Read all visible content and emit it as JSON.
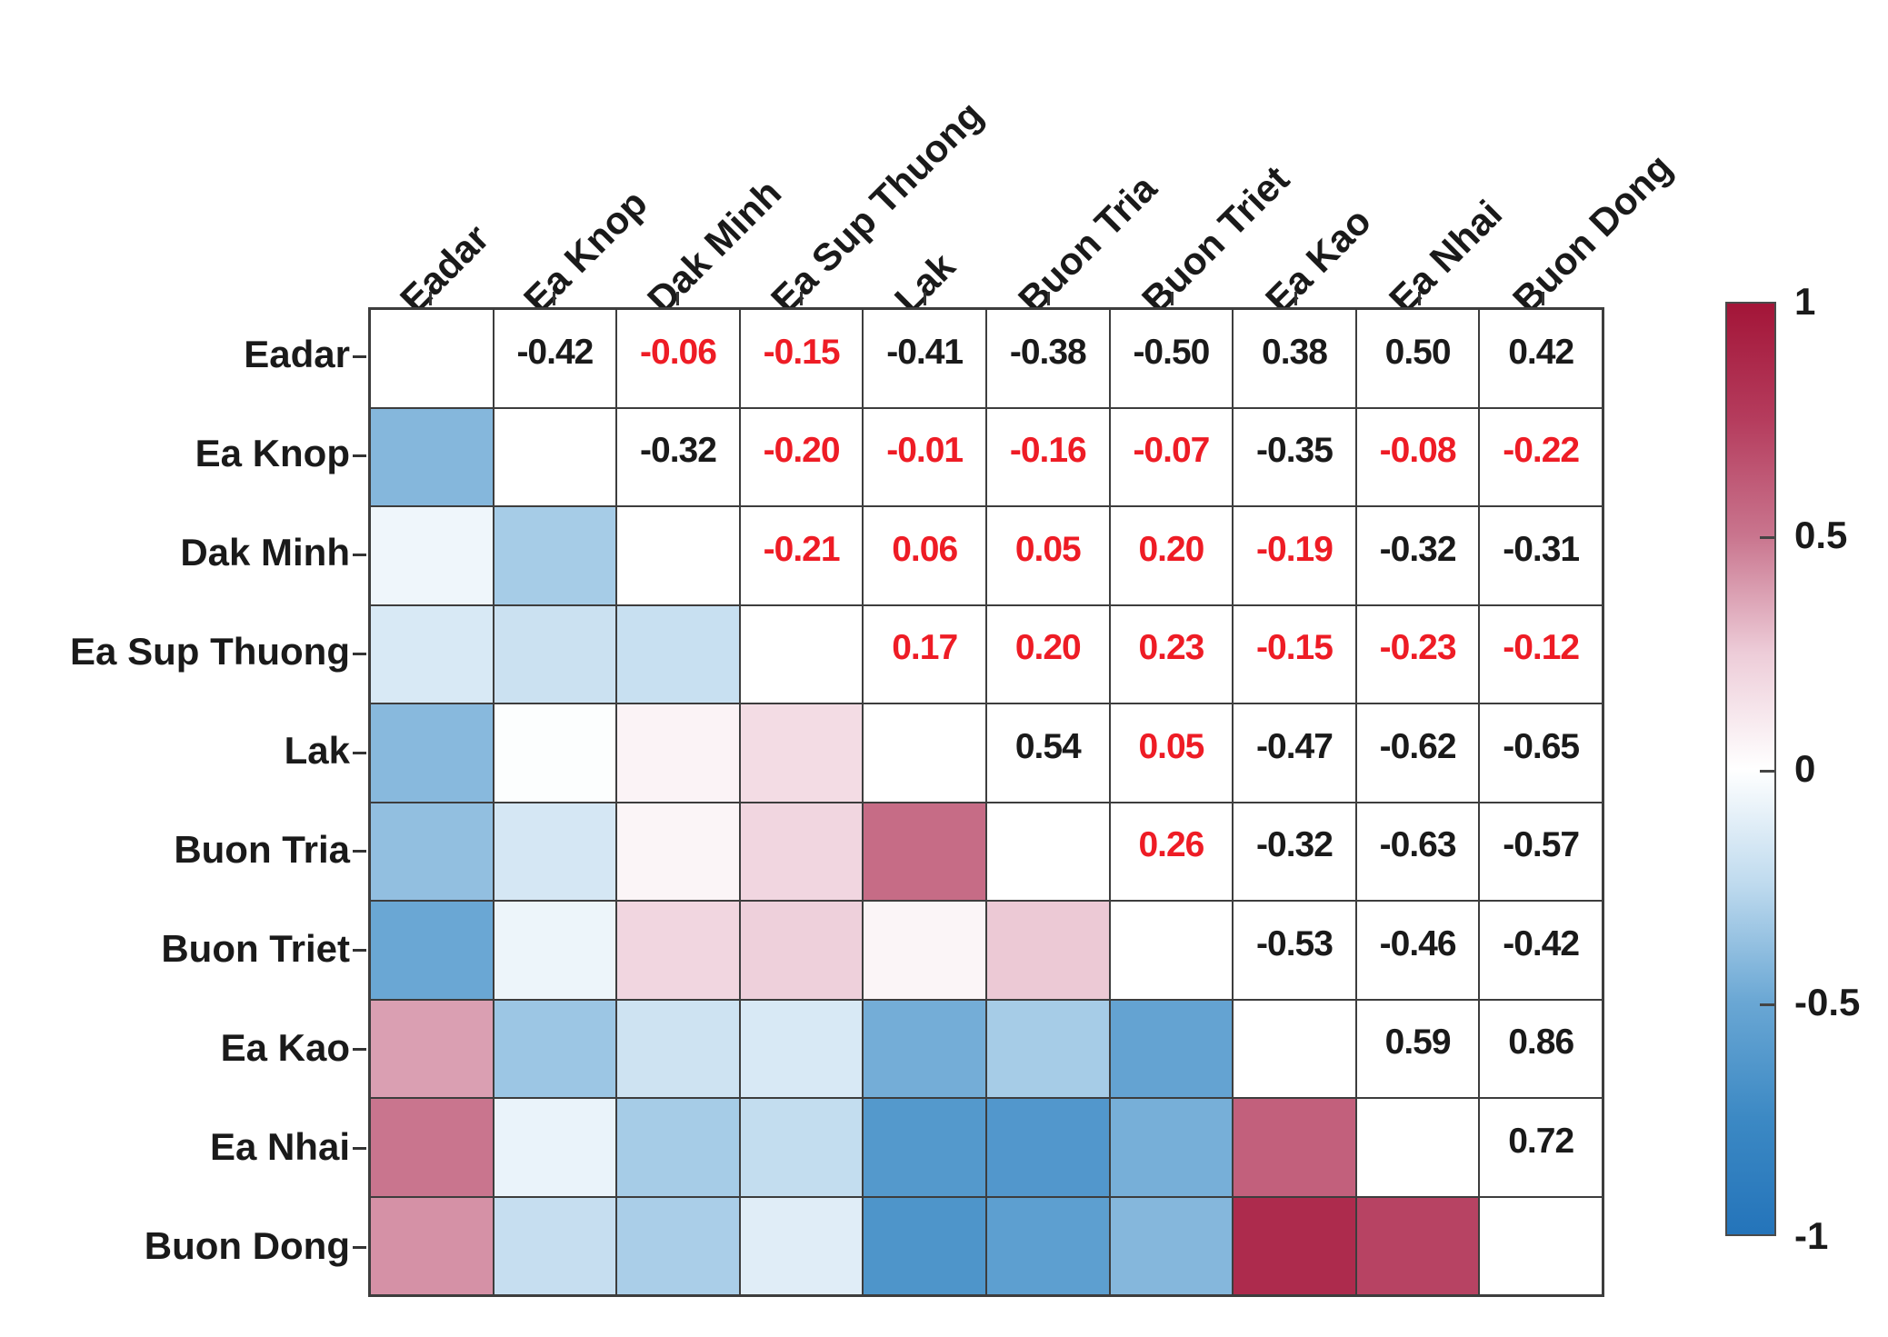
{
  "chart_data": {
    "type": "heatmap",
    "title": "",
    "description": "Correlation matrix of stations; upper triangle shows correlation coefficients (red = not significant), lower triangle shows color-coded cells",
    "labels": [
      "Eadar",
      "Ea Knop",
      "Dak Minh",
      "Ea Sup Thuong",
      "Lak",
      "Buon Tria",
      "Buon Triet",
      "Ea Kao",
      "Ea Nhai",
      "Buon Dong"
    ],
    "matrix": [
      [
        null,
        -0.42,
        -0.06,
        -0.15,
        -0.41,
        -0.38,
        -0.5,
        0.38,
        0.5,
        0.42
      ],
      [
        -0.42,
        null,
        -0.32,
        -0.2,
        -0.01,
        -0.16,
        -0.07,
        -0.35,
        -0.08,
        -0.22
      ],
      [
        -0.06,
        -0.32,
        null,
        -0.21,
        0.06,
        0.05,
        0.2,
        -0.19,
        -0.32,
        -0.31
      ],
      [
        -0.15,
        -0.2,
        -0.21,
        null,
        0.17,
        0.2,
        0.23,
        -0.15,
        -0.23,
        -0.12
      ],
      [
        -0.41,
        -0.01,
        0.06,
        0.17,
        null,
        0.54,
        0.05,
        -0.47,
        -0.62,
        -0.65
      ],
      [
        -0.38,
        -0.16,
        0.05,
        0.2,
        0.54,
        null,
        0.26,
        -0.32,
        -0.63,
        -0.57
      ],
      [
        -0.5,
        -0.07,
        0.2,
        0.23,
        0.05,
        0.26,
        null,
        -0.53,
        -0.46,
        -0.42
      ],
      [
        0.38,
        -0.35,
        -0.19,
        -0.15,
        -0.47,
        -0.32,
        -0.53,
        null,
        0.59,
        0.86
      ],
      [
        0.5,
        -0.08,
        -0.32,
        -0.23,
        -0.62,
        -0.63,
        -0.46,
        0.59,
        null,
        0.72
      ],
      [
        0.42,
        -0.22,
        -0.31,
        -0.12,
        -0.65,
        -0.57,
        -0.42,
        0.86,
        0.72,
        null
      ]
    ],
    "red_cells": [
      [
        0,
        2
      ],
      [
        0,
        3
      ],
      [
        1,
        3
      ],
      [
        1,
        4
      ],
      [
        1,
        5
      ],
      [
        1,
        6
      ],
      [
        1,
        8
      ],
      [
        1,
        9
      ],
      [
        2,
        3
      ],
      [
        2,
        4
      ],
      [
        2,
        5
      ],
      [
        2,
        6
      ],
      [
        2,
        7
      ],
      [
        3,
        4
      ],
      [
        3,
        5
      ],
      [
        3,
        6
      ],
      [
        3,
        7
      ],
      [
        3,
        8
      ],
      [
        3,
        9
      ],
      [
        4,
        6
      ],
      [
        5,
        6
      ]
    ],
    "colorbar": {
      "min": -1,
      "max": 1,
      "tick_labels": [
        "1",
        "0.5",
        "0",
        "-0.5",
        "-1"
      ],
      "tick_values": [
        1,
        0.5,
        0,
        -0.5,
        -1
      ]
    },
    "colors": {
      "stops": [
        [
          -1.0,
          "#2474ba"
        ],
        [
          -0.75,
          "#3c89c4"
        ],
        [
          -0.5,
          "#6aa7d4"
        ],
        [
          -0.25,
          "#bedaee"
        ],
        [
          0.0,
          "#ffffff"
        ],
        [
          0.25,
          "#edccd8"
        ],
        [
          0.5,
          "#c9758e"
        ],
        [
          0.75,
          "#b53c5d"
        ],
        [
          1.0,
          "#a31538"
        ]
      ],
      "value_black": "#1a1a1a",
      "value_red": "#ee1c25",
      "grid_line": "#3d3d3d",
      "background": "#ffffff"
    }
  }
}
